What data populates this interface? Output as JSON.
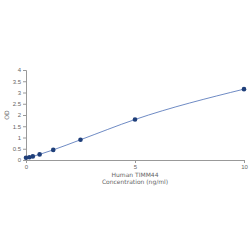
{
  "chart_data": {
    "type": "line",
    "x_label": "Human TIMM44\nConcentration (ng/ml)",
    "y_label": "OD",
    "x": [
      0,
      0.156,
      0.312,
      0.625,
      1.25,
      2.5,
      5,
      10
    ],
    "values": [
      0.1,
      0.12,
      0.16,
      0.25,
      0.45,
      0.9,
      1.8,
      3.15
    ],
    "color": "#1f3f7a",
    "marker": "circle",
    "xlim": [
      0,
      10
    ],
    "xticks": [
      0,
      5,
      10
    ],
    "ylim": [
      0,
      4
    ],
    "yticks": [
      0,
      0.5,
      1,
      1.5,
      2,
      2.5,
      3,
      3.5,
      4
    ],
    "grid": false
  }
}
